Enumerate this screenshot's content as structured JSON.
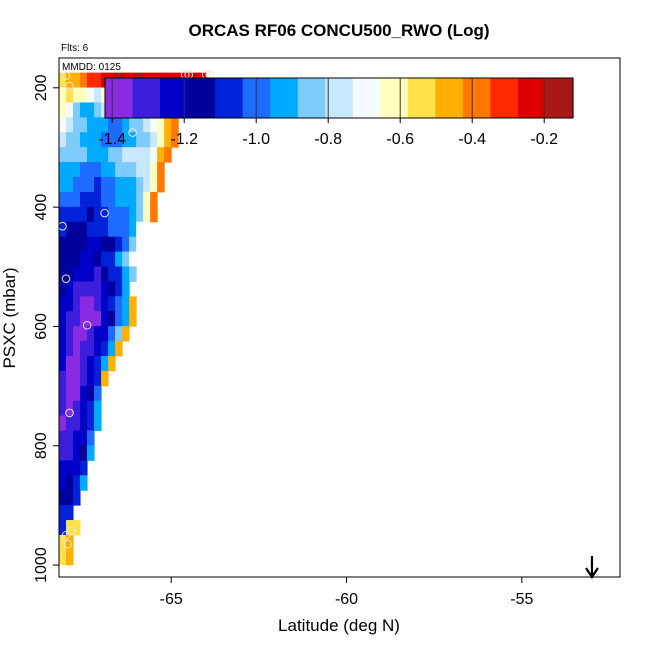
{
  "chart_data": {
    "type": "heatmap",
    "title": "ORCAS RF06 CONCU500_RWO (Log)",
    "flights_label": "Flts: 6",
    "date_label": "MMDD: 0125",
    "xlabel": "Latitude (deg N)",
    "ylabel": "PSXC (mbar)",
    "xlim": [
      -68.2,
      -52.2
    ],
    "ylim": [
      1020,
      150
    ],
    "y_reversed": true,
    "x_ticks": [
      -65,
      -60,
      -55
    ],
    "y_ticks": [
      200,
      400,
      600,
      800,
      1000
    ],
    "colorbar": {
      "range": [
        -1.42,
        -0.12
      ],
      "ticks": [
        -1.4,
        -1.2,
        -1.0,
        -0.8,
        -0.6,
        -0.4,
        -0.2
      ],
      "tick_labels": [
        "-1.4",
        "-1.2",
        "-1.0",
        "-0.8",
        "-0.6",
        "-0.4",
        "-0.2"
      ],
      "colors": [
        "#8a2be2",
        "#3c1edc",
        "#0000c8",
        "#00009a",
        "#0022d8",
        "#1e6cff",
        "#00aaff",
        "#7ecbff",
        "#c8e8ff",
        "#f6fbff",
        "#ffffc0",
        "#ffe14a",
        "#ffb000",
        "#ff7800",
        "#ff2800",
        "#dc0000",
        "#a81818"
      ],
      "position": "top"
    },
    "cell": {
      "lat_width": 0.2,
      "p_height": 25
    },
    "rows": [
      {
        "p": 187,
        "lat0": -68.2,
        "values": [
          -0.55,
          -0.45,
          -0.5,
          -0.35,
          -0.32,
          -0.28,
          -0.22,
          -0.2,
          -0.18,
          -0.2,
          -0.22,
          -0.18,
          -0.2,
          -0.22,
          -0.2,
          -0.22,
          -0.25,
          -0.22,
          -0.2,
          -0.22,
          -0.25
        ]
      },
      {
        "p": 212,
        "lat0": -68.2,
        "values": [
          -0.58,
          -0.55,
          -0.6,
          -0.65,
          -0.7,
          -0.75,
          -0.65,
          -0.6,
          -0.55,
          -0.55,
          -0.55,
          -0.5,
          -0.45,
          -0.42,
          -0.45,
          -0.4,
          -0.35,
          -0.3,
          -0.28
        ]
      },
      {
        "p": 237,
        "lat0": -68.2,
        "values": [
          -0.62,
          -0.7,
          -0.82,
          -0.9,
          -0.95,
          -0.88,
          -0.8,
          -0.78,
          -0.82,
          -0.85,
          -0.78,
          -0.72,
          -0.68,
          -0.62,
          -0.58,
          -0.52,
          -0.45,
          -0.35
        ]
      },
      {
        "p": 262,
        "lat0": -68.2,
        "values": [
          -0.72,
          -0.78,
          -0.82,
          -0.85,
          -0.9,
          -0.92,
          -0.95,
          -0.98,
          -1.0,
          -0.92,
          -0.88,
          -0.85,
          -0.78,
          -0.72,
          -0.6,
          -0.5,
          -0.4
        ]
      },
      {
        "p": 287,
        "lat0": -68.2,
        "values": [
          -0.8,
          -0.84,
          -0.88,
          -0.9,
          -0.92,
          -0.95,
          -0.98,
          -1.0,
          -1.02,
          -0.96,
          -0.92,
          -0.86,
          -0.82,
          -0.78,
          -0.6,
          -0.5,
          -0.42
        ]
      },
      {
        "p": 312,
        "lat0": -68.2,
        "values": [
          -0.82,
          -0.85,
          -0.88,
          -0.86,
          -0.9,
          -0.92,
          -0.9,
          -0.88,
          -0.82,
          -0.8,
          -0.78,
          -0.78,
          -0.8,
          -0.72,
          -0.5,
          -0.42
        ]
      },
      {
        "p": 337,
        "lat0": -68.2,
        "values": [
          -0.9,
          -0.92,
          -0.95,
          -0.98,
          -1.0,
          -0.98,
          -0.95,
          -0.9,
          -0.88,
          -0.84,
          -0.82,
          -0.8,
          -0.78,
          -0.6,
          -0.42
        ]
      },
      {
        "p": 362,
        "lat0": -68.2,
        "values": [
          -0.95,
          -0.96,
          -0.98,
          -1.0,
          -1.02,
          -1.05,
          -1.0,
          -0.98,
          -0.95,
          -0.96,
          -0.9,
          -0.88,
          -0.78,
          -0.6,
          -0.42
        ]
      },
      {
        "p": 387,
        "lat0": -68.2,
        "values": [
          -0.98,
          -1.0,
          -1.02,
          -1.05,
          -1.08,
          -1.05,
          -1.0,
          -0.98,
          -0.95,
          -0.92,
          -0.9,
          -0.85,
          -0.6,
          -0.4
        ]
      },
      {
        "p": 412,
        "lat0": -68.2,
        "values": [
          -1.05,
          -1.06,
          -1.08,
          -1.1,
          -1.12,
          -1.08,
          -1.05,
          -1.02,
          -1.0,
          -0.98,
          -0.95,
          -0.85,
          -0.6,
          -0.42
        ]
      },
      {
        "p": 437,
        "lat0": -68.2,
        "values": [
          -1.1,
          -1.12,
          -1.15,
          -1.12,
          -1.1,
          -1.08,
          -1.05,
          -1.02,
          -1.0,
          -0.98,
          -0.9,
          -0.7
        ]
      },
      {
        "p": 462,
        "lat0": -68.2,
        "values": [
          -1.12,
          -1.14,
          -1.16,
          -1.18,
          -1.2,
          -1.2,
          -1.15,
          -1.12,
          -1.05,
          -1.0,
          -0.85,
          -0.68
        ]
      },
      {
        "p": 487,
        "lat0": -68.2,
        "values": [
          -1.12,
          -1.15,
          -1.18,
          -1.2,
          -1.22,
          -1.15,
          -1.1,
          -1.05,
          -0.95,
          -0.85,
          -0.7
        ]
      },
      {
        "p": 512,
        "lat0": -68.2,
        "values": [
          -1.15,
          -1.18,
          -1.2,
          -1.22,
          -1.25,
          -1.3,
          -1.18,
          -1.1,
          -1.05,
          -0.95,
          -0.88
        ]
      },
      {
        "p": 537,
        "lat0": -68.2,
        "values": [
          -1.18,
          -1.2,
          -1.28,
          -1.3,
          -1.32,
          -1.28,
          -1.2,
          -1.12,
          -1.05,
          -0.95
        ]
      },
      {
        "p": 562,
        "lat0": -68.2,
        "values": [
          -1.2,
          -1.25,
          -1.3,
          -1.35,
          -1.4,
          -1.3,
          -1.22,
          -1.1,
          -1.0,
          -0.95,
          -0.45
        ]
      },
      {
        "p": 587,
        "lat0": -68.2,
        "values": [
          -1.25,
          -1.3,
          -1.32,
          -1.35,
          -1.42,
          -1.38,
          -1.25,
          -1.15,
          -1.0,
          -0.95,
          -0.45
        ]
      },
      {
        "p": 612,
        "lat0": -68.2,
        "values": [
          -1.25,
          -1.28,
          -1.35,
          -1.4,
          -1.3,
          -1.25,
          -1.2,
          -1.0,
          -0.85,
          -0.45
        ]
      },
      {
        "p": 637,
        "lat0": -68.2,
        "values": [
          -1.22,
          -1.3,
          -1.38,
          -1.32,
          -1.3,
          -1.2,
          -1.05,
          -0.9,
          -0.45
        ]
      },
      {
        "p": 662,
        "lat0": -68.2,
        "values": [
          -1.25,
          -1.35,
          -1.4,
          -1.3,
          -1.22,
          -1.1,
          -0.95,
          -0.45
        ]
      },
      {
        "p": 687,
        "lat0": -68.2,
        "values": [
          -1.3,
          -1.38,
          -1.4,
          -1.3,
          -1.2,
          -1.05,
          -0.45
        ]
      },
      {
        "p": 712,
        "lat0": -68.2,
        "values": [
          -1.28,
          -1.4,
          -1.35,
          -1.25,
          -1.15,
          -1.0
        ]
      },
      {
        "p": 737,
        "lat0": -68.2,
        "values": [
          -1.3,
          -1.35,
          -1.3,
          -1.2,
          -1.08,
          -0.95
        ]
      },
      {
        "p": 762,
        "lat0": -68.2,
        "values": [
          -1.4,
          -1.32,
          -1.3,
          -1.2,
          -1.05,
          -0.95
        ]
      },
      {
        "p": 787,
        "lat0": -68.2,
        "values": [
          -1.3,
          -1.28,
          -1.25,
          -1.2,
          -1.0
        ]
      },
      {
        "p": 812,
        "lat0": -68.2,
        "values": [
          -1.3,
          -1.28,
          -1.25,
          -1.15,
          -0.95
        ]
      },
      {
        "p": 837,
        "lat0": -68.2,
        "values": [
          -1.25,
          -1.22,
          -1.2,
          -1.1
        ]
      },
      {
        "p": 862,
        "lat0": -68.2,
        "values": [
          -1.2,
          -1.18,
          -1.1,
          -0.95
        ]
      },
      {
        "p": 887,
        "lat0": -68.2,
        "values": [
          -1.18,
          -1.15,
          -1.05
        ]
      },
      {
        "p": 912,
        "lat0": -68.2,
        "values": [
          -1.1,
          -1.05
        ]
      },
      {
        "p": 937,
        "lat0": -68.2,
        "values": [
          -1.05,
          -0.55,
          -0.55
        ]
      },
      {
        "p": 962,
        "lat0": -68.2,
        "values": [
          -0.55,
          -0.5
        ]
      },
      {
        "p": 987,
        "lat0": -68.2,
        "values": [
          -0.55,
          -0.5
        ]
      }
    ],
    "markers": [
      {
        "lat": -68.0,
        "p": 180
      },
      {
        "lat": -67.9,
        "p": 197
      },
      {
        "lat": -65.2,
        "p": 190
      },
      {
        "lat": -64.6,
        "p": 178
      },
      {
        "lat": -64.5,
        "p": 178
      },
      {
        "lat": -64.0,
        "p": 178
      },
      {
        "lat": -63.9,
        "p": 178
      },
      {
        "lat": -66.1,
        "p": 275
      },
      {
        "lat": -68.1,
        "p": 432
      },
      {
        "lat": -66.9,
        "p": 410
      },
      {
        "lat": -68.0,
        "p": 520
      },
      {
        "lat": -67.4,
        "p": 598
      },
      {
        "lat": -67.9,
        "p": 745
      },
      {
        "lat": -68.0,
        "p": 950
      },
      {
        "lat": -67.85,
        "p": 943
      },
      {
        "lat": -67.95,
        "p": 965
      }
    ],
    "arrow": {
      "lat": -53.0,
      "direction": "down"
    }
  }
}
